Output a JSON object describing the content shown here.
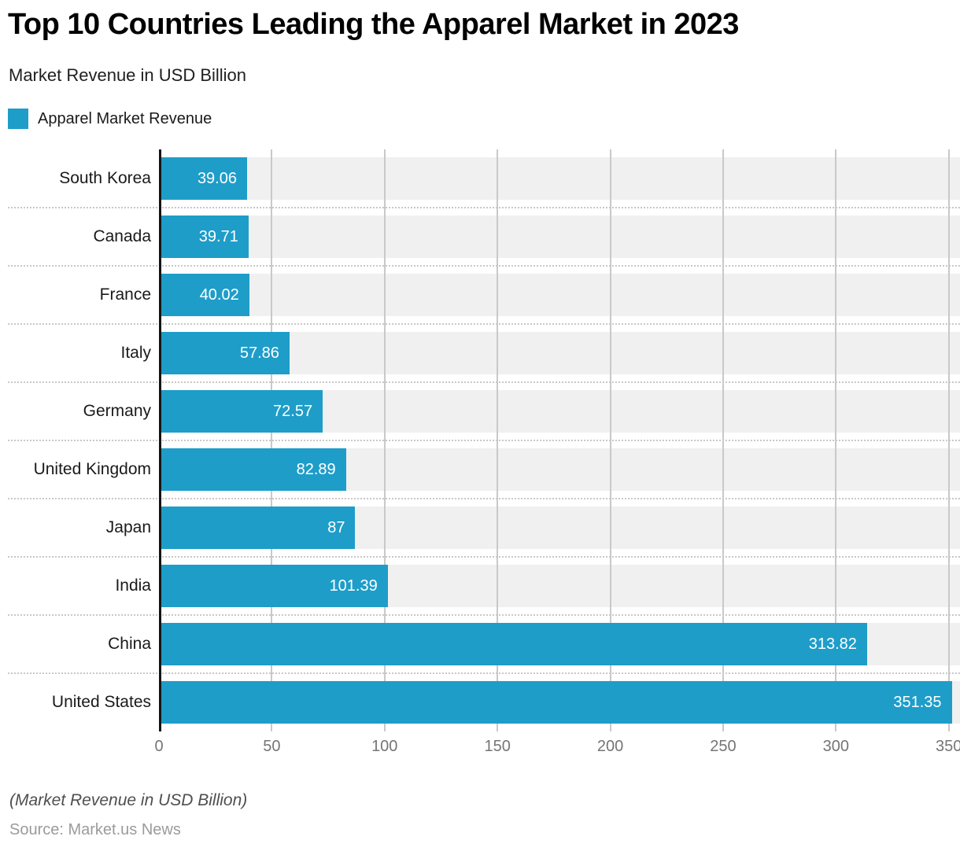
{
  "header": {
    "title": "Top 10 Countries Leading the Apparel Market in 2023",
    "subtitle": "Market Revenue in USD Billion"
  },
  "legend": {
    "label": "Apparel Market Revenue"
  },
  "footer": {
    "note": "(Market Revenue in USD Billion)",
    "source": "Source: Market.us News"
  },
  "colors": {
    "bar": "#1E9DC9",
    "row_band": "#F0F0F0",
    "gridline": "#C9C9C9",
    "axis": "#141414",
    "tick_label": "#757575",
    "value_label": "#FFFFFF"
  },
  "chart_data": {
    "type": "bar",
    "orientation": "horizontal",
    "title": "Top 10 Countries Leading the Apparel Market in 2023",
    "subtitle": "Market Revenue in USD Billion",
    "series": [
      {
        "name": "Apparel Market Revenue",
        "values": [
          39.06,
          39.71,
          40.02,
          57.86,
          72.57,
          82.89,
          87,
          101.39,
          313.82,
          351.35
        ]
      }
    ],
    "categories": [
      "South Korea",
      "Canada",
      "France",
      "Italy",
      "Germany",
      "United Kingdom",
      "Japan",
      "India",
      "China",
      "United States"
    ],
    "xlabel": "",
    "ylabel": "",
    "xticks": [
      0,
      50,
      100,
      150,
      200,
      250,
      300,
      350
    ],
    "xlim": [
      0,
      355
    ],
    "grid": "vertical",
    "legend_position": "top-left",
    "value_labels": "inside-end",
    "footnote": "(Market Revenue in USD Billion)",
    "source": "Source: Market.us News"
  }
}
